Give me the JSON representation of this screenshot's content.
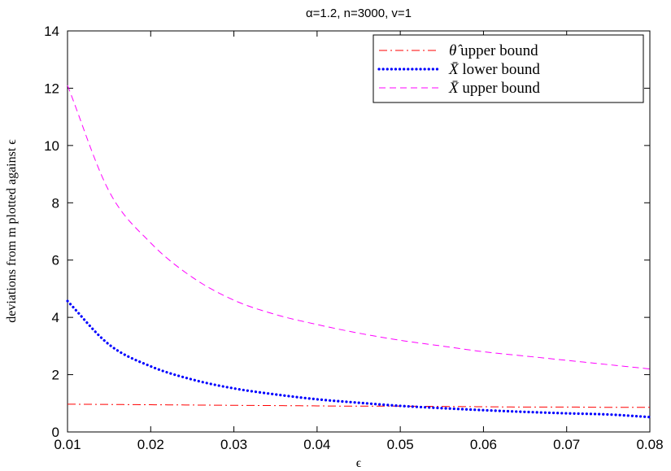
{
  "chart_data": {
    "type": "line",
    "title": "α=1.2, n=3000, v=1",
    "xlabel": "ϵ",
    "ylabel": "deviations from m plotted against ϵ",
    "xlim": [
      0.01,
      0.08
    ],
    "ylim": [
      0,
      14
    ],
    "xticks": [
      "0.01",
      "0.02",
      "0.03",
      "0.04",
      "0.05",
      "0.06",
      "0.07",
      "0.08"
    ],
    "yticks": [
      "0",
      "2",
      "4",
      "6",
      "8",
      "10",
      "12",
      "14"
    ],
    "grid": false,
    "legend_position": "top-right",
    "x": [
      0.01,
      0.015,
      0.02,
      0.025,
      0.03,
      0.035,
      0.04,
      0.045,
      0.05,
      0.055,
      0.06,
      0.065,
      0.07,
      0.075,
      0.08
    ],
    "series": [
      {
        "name": "θ̂ upper bound",
        "name_main": "θ̂",
        "name_rest": " upper bound",
        "color": "#ff0000",
        "style": "dashdot",
        "values": [
          0.97,
          0.96,
          0.95,
          0.94,
          0.93,
          0.92,
          0.91,
          0.9,
          0.9,
          0.89,
          0.88,
          0.87,
          0.87,
          0.86,
          0.86
        ]
      },
      {
        "name": "X̄ lower bound",
        "name_main": "X̄",
        "name_rest": " lower bound",
        "color": "#0000ff",
        "style": "dotted",
        "values": [
          4.57,
          3.05,
          2.29,
          1.83,
          1.52,
          1.31,
          1.14,
          1.02,
          0.91,
          0.83,
          0.76,
          0.7,
          0.65,
          0.61,
          0.52
        ]
      },
      {
        "name": "X̄ upper bound",
        "name_main": "X̄",
        "name_rest": " upper bound",
        "color": "#ff00ff",
        "style": "dashed",
        "values": [
          12.1,
          8.4,
          6.6,
          5.4,
          4.6,
          4.1,
          3.75,
          3.45,
          3.2,
          3.0,
          2.8,
          2.65,
          2.5,
          2.35,
          2.2
        ]
      }
    ]
  }
}
